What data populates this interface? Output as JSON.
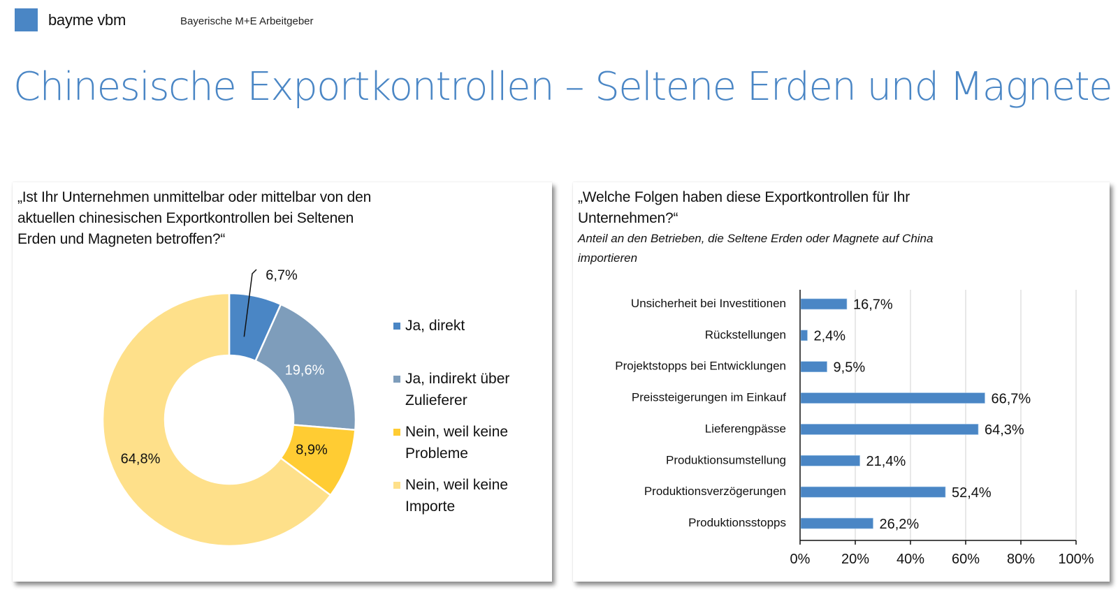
{
  "header": {
    "brand": "bayme vbm",
    "subtitle": "Bayerische M+E Arbeitgeber",
    "brand_color": "#4A86C5"
  },
  "page_title": "Chinesische Exportkontrollen – Seltene Erden und Magnete",
  "left_panel": {
    "question_lines": [
      "„Ist Ihr Unternehmen unmittelbar oder mittelbar von den",
      "aktuellen chinesischen Exportkontrollen bei Seltenen",
      "Erden und Magneten betroffen?“"
    ]
  },
  "right_panel": {
    "question_lines": [
      "„Welche Folgen haben diese Exportkontrollen für Ihr",
      "Unternehmen?“"
    ],
    "subtitle_lines": [
      "Anteil an den Betrieben, die Seltene Erden oder Magnete auf China",
      "importieren"
    ]
  },
  "chart_data": [
    {
      "type": "pie",
      "subtype": "donut",
      "title": "„Ist Ihr Unternehmen unmittelbar oder mittelbar von den aktuellen chinesischen Exportkontrollen bei Seltenen Erden und Magneten betroffen?“",
      "categories": [
        "Ja, direkt",
        "Ja, indirekt über Zulieferer",
        "Nein, weil keine Probleme",
        "Nein, weil keine Importe"
      ],
      "legend_lines": [
        [
          "Ja, direkt"
        ],
        [
          "Ja, indirekt über",
          "Zulieferer"
        ],
        [
          "Nein, weil keine",
          "Probleme"
        ],
        [
          "Nein, weil keine",
          "Importe"
        ]
      ],
      "values": [
        6.7,
        19.6,
        8.9,
        64.8
      ],
      "labels": [
        "6,7%",
        "19,6%",
        "8,9%",
        "64,8%"
      ],
      "colors": [
        "#4A86C5",
        "#7E9DBB",
        "#FFCC33",
        "#FEE08A"
      ],
      "label_colors": [
        "#111111",
        "#FFFFFF",
        "#111111",
        "#111111"
      ],
      "legend": "right"
    },
    {
      "type": "bar",
      "orientation": "horizontal",
      "title": "„Welche Folgen haben diese Exportkontrollen für Ihr Unternehmen?“",
      "subtitle": "Anteil an den Betrieben, die Seltene Erden oder Magnete auf China importieren",
      "categories": [
        "Unsicherheit bei Investitionen",
        "Rückstellungen",
        "Projektstopps bei Entwicklungen",
        "Preissteigerungen im Einkauf",
        "Lieferengpässe",
        "Produktionsumstellung",
        "Produktionsverzögerungen",
        "Produktionsstopps"
      ],
      "values": [
        16.7,
        2.4,
        9.5,
        66.7,
        64.3,
        21.4,
        52.4,
        26.2
      ],
      "labels": [
        "16,7%",
        "2,4%",
        "9,5%",
        "66,7%",
        "64,3%",
        "21,4%",
        "52,4%",
        "26,2%"
      ],
      "xlim": [
        0,
        100
      ],
      "xticks": [
        0,
        20,
        40,
        60,
        80,
        100
      ],
      "xtick_labels": [
        "0%",
        "20%",
        "40%",
        "60%",
        "80%",
        "100%"
      ],
      "xlabel": "",
      "ylabel": "",
      "grid": true,
      "bar_color": "#4A86C5"
    }
  ]
}
